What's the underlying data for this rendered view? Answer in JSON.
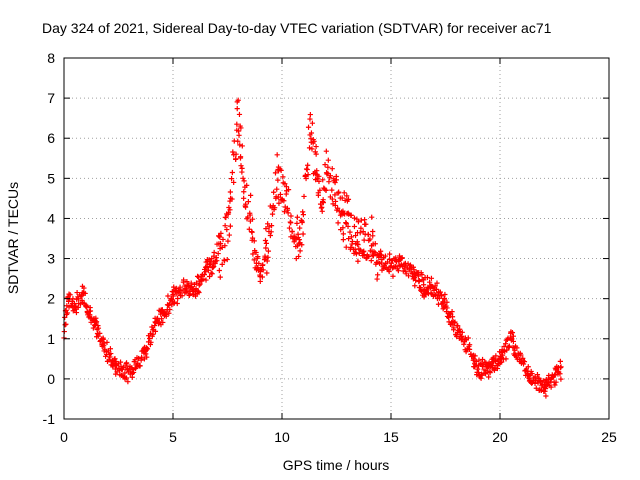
{
  "chart_data": {
    "type": "scatter",
    "title": "Day 324 of 2021, Sidereal Day-to-day VTEC variation (SDTVAR) for receiver ac71",
    "xlabel": "GPS time / hours",
    "ylabel": "SDTVAR / TECUs",
    "xlim": [
      0,
      25
    ],
    "ylim": [
      -1,
      8
    ],
    "xticks": [
      "0",
      "5",
      "10",
      "15",
      "20",
      "25"
    ],
    "yticks": [
      "-1",
      "0",
      "1",
      "2",
      "3",
      "4",
      "5",
      "6",
      "7",
      "8"
    ],
    "grid": true,
    "marker": "+",
    "color": "#ff0000",
    "series": [
      {
        "name": "SDTVAR",
        "comment": "approximate trace envelope (hour, TECU) read from the plot",
        "x": [
          0.0,
          0.1,
          0.3,
          0.5,
          0.8,
          1.0,
          1.2,
          1.5,
          1.8,
          2.0,
          2.3,
          2.6,
          2.9,
          3.2,
          3.5,
          3.8,
          4.1,
          4.5,
          5.0,
          5.5,
          6.0,
          6.3,
          6.6,
          7.0,
          7.3,
          7.6,
          7.8,
          8.0,
          8.2,
          8.5,
          8.8,
          9.0,
          9.3,
          9.6,
          9.8,
          10.0,
          10.3,
          10.6,
          10.9,
          11.1,
          11.3,
          11.5,
          11.8,
          12.0,
          12.3,
          12.6,
          12.9,
          13.2,
          13.6,
          14.0,
          14.5,
          15.0,
          15.5,
          16.0,
          16.5,
          17.0,
          17.5,
          18.0,
          18.5,
          19.0,
          19.5,
          20.0,
          20.5,
          21.0,
          21.5,
          22.0,
          22.5,
          22.8
        ],
        "y": [
          1.0,
          1.8,
          2.0,
          1.8,
          2.1,
          2.0,
          1.6,
          1.2,
          0.9,
          0.6,
          0.35,
          0.25,
          0.2,
          0.3,
          0.5,
          0.8,
          1.2,
          1.6,
          2.0,
          2.3,
          2.2,
          2.5,
          2.8,
          3.0,
          3.3,
          4.0,
          5.5,
          6.5,
          5.0,
          4.0,
          3.0,
          2.5,
          3.2,
          4.5,
          5.0,
          4.8,
          4.2,
          3.5,
          3.8,
          5.0,
          6.5,
          5.5,
          4.5,
          5.0,
          4.8,
          4.5,
          4.0,
          3.6,
          3.5,
          3.4,
          3.0,
          2.8,
          2.9,
          2.6,
          2.3,
          2.2,
          1.8,
          1.2,
          0.8,
          0.2,
          0.3,
          0.5,
          1.0,
          0.4,
          0.0,
          -0.2,
          0.0,
          0.3
        ]
      }
    ]
  }
}
